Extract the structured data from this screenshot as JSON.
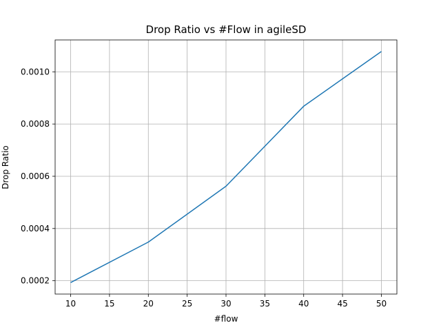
{
  "chart_data": {
    "type": "line",
    "title": "Drop Ratio vs #Flow in agileSD",
    "xlabel": "#flow",
    "ylabel": "Drop Ratio",
    "x": [
      10,
      20,
      30,
      40,
      50
    ],
    "series": [
      {
        "values": [
          0.000193,
          0.000348,
          0.000562,
          0.000868,
          0.001078
        ]
      }
    ],
    "xticks": [
      10,
      15,
      20,
      25,
      30,
      35,
      40,
      45,
      50
    ],
    "xtick_labels": [
      "10",
      "15",
      "20",
      "25",
      "30",
      "35",
      "40",
      "45",
      "50"
    ],
    "yticks": [
      0.0002,
      0.0004,
      0.0006,
      0.0008,
      0.001
    ],
    "ytick_labels": [
      "0.0002",
      "0.0004",
      "0.0006",
      "0.0008",
      "0.0010"
    ],
    "xlim": [
      8,
      52
    ],
    "ylim": [
      0.000149,
      0.001122
    ],
    "grid": true,
    "colors": {
      "line": "#1f77b4",
      "grid": "#b0b0b0",
      "axes": "#000000"
    }
  }
}
